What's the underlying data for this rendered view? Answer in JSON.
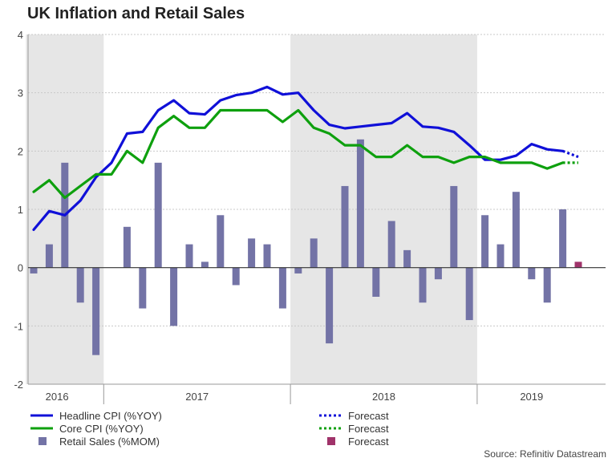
{
  "chart_data": {
    "type": "bar",
    "title": "UK Inflation and Retail Sales",
    "xlabel": "",
    "ylabel": "",
    "ylim": [
      -2,
      4
    ],
    "yticks": [
      -2,
      -1,
      0,
      1,
      2,
      3,
      4
    ],
    "x_period_count": 37,
    "year_labels": [
      {
        "label": "2016",
        "center_index": 1.5
      },
      {
        "label": "2017",
        "center_index": 10.5
      },
      {
        "label": "2018",
        "center_index": 22.5
      },
      {
        "label": "2019",
        "center_index": 32
      }
    ],
    "shaded_years": [
      {
        "start_index": -0.5,
        "end_index": 4.5
      },
      {
        "start_index": 16.5,
        "end_index": 28.5
      }
    ],
    "year_dividers": [
      4.5,
      16.5,
      28.5
    ],
    "series": [
      {
        "name": "Headline CPI (%YOY)",
        "kind": "line",
        "color": "#1010d8",
        "values": [
          0.65,
          0.97,
          0.9,
          1.15,
          1.55,
          1.8,
          2.3,
          2.33,
          2.7,
          2.87,
          2.65,
          2.63,
          2.87,
          2.96,
          3.0,
          3.1,
          2.97,
          3.0,
          2.7,
          2.45,
          2.39,
          2.42,
          2.45,
          2.48,
          2.65,
          2.42,
          2.4,
          2.33,
          2.1,
          1.85,
          1.85,
          1.92,
          2.12,
          2.03,
          2.0,
          null,
          null
        ]
      },
      {
        "name": "Forecast",
        "kind": "line-forecast",
        "color": "#1010d8",
        "values": [
          null,
          null,
          null,
          null,
          null,
          null,
          null,
          null,
          null,
          null,
          null,
          null,
          null,
          null,
          null,
          null,
          null,
          null,
          null,
          null,
          null,
          null,
          null,
          null,
          null,
          null,
          null,
          null,
          null,
          null,
          null,
          null,
          null,
          null,
          2.0,
          1.9,
          null
        ]
      },
      {
        "name": "Core CPI (%YOY)",
        "kind": "line",
        "color": "#0ea00e",
        "values": [
          1.3,
          1.5,
          1.2,
          1.4,
          1.6,
          1.6,
          2.0,
          1.8,
          2.4,
          2.6,
          2.4,
          2.4,
          2.7,
          2.7,
          2.7,
          2.7,
          2.5,
          2.7,
          2.4,
          2.3,
          2.1,
          2.1,
          1.9,
          1.9,
          2.1,
          1.9,
          1.9,
          1.8,
          1.9,
          1.9,
          1.8,
          1.8,
          1.8,
          1.7,
          1.8,
          null,
          null
        ]
      },
      {
        "name": "Forecast",
        "kind": "line-forecast",
        "color": "#0ea00e",
        "values": [
          null,
          null,
          null,
          null,
          null,
          null,
          null,
          null,
          null,
          null,
          null,
          null,
          null,
          null,
          null,
          null,
          null,
          null,
          null,
          null,
          null,
          null,
          null,
          null,
          null,
          null,
          null,
          null,
          null,
          null,
          null,
          null,
          null,
          null,
          1.8,
          1.8,
          null
        ]
      },
      {
        "name": "Retail Sales (%MOM)",
        "kind": "bar",
        "color": "#7373a6",
        "values": [
          -0.1,
          0.4,
          1.8,
          -0.6,
          -1.5,
          null,
          0.7,
          -0.7,
          1.8,
          -1.0,
          0.4,
          0.1,
          0.9,
          -0.3,
          0.5,
          0.4,
          -0.7,
          -0.1,
          0.5,
          -1.3,
          1.4,
          2.2,
          -0.5,
          0.8,
          0.3,
          -0.6,
          -0.2,
          1.4,
          -0.9,
          0.9,
          0.4,
          1.3,
          -0.2,
          -0.6,
          1.0,
          null,
          null
        ]
      },
      {
        "name": "Forecast",
        "kind": "bar-forecast",
        "color": "#a0336a",
        "values": [
          null,
          null,
          null,
          null,
          null,
          null,
          null,
          null,
          null,
          null,
          null,
          null,
          null,
          null,
          null,
          null,
          null,
          null,
          null,
          null,
          null,
          null,
          null,
          null,
          null,
          null,
          null,
          null,
          null,
          null,
          null,
          null,
          null,
          null,
          null,
          0.1,
          null
        ]
      }
    ],
    "legend": {
      "placement": "bottom",
      "entries": [
        {
          "label": "Headline CPI (%YOY)",
          "style": "line",
          "color": "#1010d8"
        },
        {
          "label": "Forecast",
          "style": "dotted",
          "color": "#1010d8"
        },
        {
          "label": "Core CPI (%YOY)",
          "style": "line",
          "color": "#0ea00e"
        },
        {
          "label": "Forecast",
          "style": "dotted",
          "color": "#0ea00e"
        },
        {
          "label": "Retail Sales (%MOM)",
          "style": "square",
          "color": "#7373a6"
        },
        {
          "label": "Forecast",
          "style": "square",
          "color": "#a0336a"
        }
      ]
    },
    "source": "Source: Refinitiv Datastream",
    "grid": true,
    "shade_color": "#e6e6e6",
    "grid_color": "#c8c8c8"
  }
}
